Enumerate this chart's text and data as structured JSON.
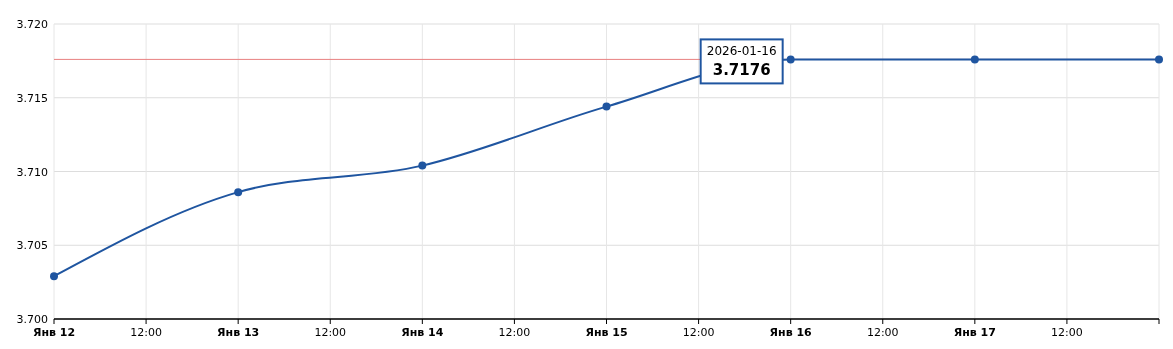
{
  "chart_data": {
    "type": "line",
    "x": [
      "2026-01-12",
      "2026-01-13",
      "2026-01-14",
      "2026-01-15",
      "2026-01-16",
      "2026-01-17",
      "2026-01-18"
    ],
    "series": [
      {
        "color": "#1f55a0",
        "values": [
          3.7029,
          3.7086,
          3.7104,
          3.7144,
          3.7176,
          3.7176,
          3.7176
        ]
      }
    ],
    "xlim": [
      "2026-01-12",
      "2026-01-18"
    ],
    "xticks": [
      {
        "value": "2026-01-12",
        "label": "Янв 12"
      },
      {
        "value": "2026-01-12T12:00",
        "label": "12:00"
      },
      {
        "value": "2026-01-13",
        "label": "Янв 13"
      },
      {
        "value": "2026-01-13T12:00",
        "label": "12:00"
      },
      {
        "value": "2026-01-14",
        "label": "Янв 14"
      },
      {
        "value": "2026-01-14T12:00",
        "label": "12:00"
      },
      {
        "value": "2026-01-15",
        "label": "Янв 15"
      },
      {
        "value": "2026-01-15T12:00",
        "label": "12:00"
      },
      {
        "value": "2026-01-16",
        "label": "Янв 16"
      },
      {
        "value": "2026-01-16T12:00",
        "label": "12:00"
      },
      {
        "value": "2026-01-17",
        "label": "Янв 17"
      },
      {
        "value": "2026-01-17T12:00",
        "label": "12:00"
      },
      {
        "value": "2026-01-18",
        "label": null
      }
    ],
    "ylim": [
      3.7,
      3.72
    ],
    "yticks": [
      {
        "value": 3.7,
        "label": "3.700"
      },
      {
        "value": 3.705,
        "label": "3.705"
      },
      {
        "value": 3.71,
        "label": "3.710"
      },
      {
        "value": 3.715,
        "label": "3.715"
      },
      {
        "value": 3.72,
        "label": "3.720"
      }
    ],
    "ref_lines": [
      {
        "axis": "y",
        "value": 3.7176,
        "color": "#e88080"
      }
    ],
    "annotations": [
      {
        "text": "2026-01-16",
        "x": "2026-01-16",
        "y": 3.7176
      },
      {
        "text": "3.7176",
        "x": "2026-01-16",
        "y": 3.7176
      }
    ],
    "grid": true,
    "marker": "circle",
    "line_style": "solid"
  }
}
